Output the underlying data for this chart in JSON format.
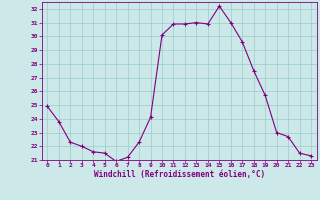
{
  "x": [
    0,
    1,
    2,
    3,
    4,
    5,
    6,
    7,
    8,
    9,
    10,
    11,
    12,
    13,
    14,
    15,
    16,
    17,
    18,
    19,
    20,
    21,
    22,
    23
  ],
  "y": [
    24.9,
    23.8,
    22.3,
    22.0,
    21.6,
    21.5,
    20.9,
    21.2,
    22.3,
    24.1,
    30.1,
    30.9,
    30.9,
    31.0,
    30.9,
    32.2,
    31.0,
    29.6,
    27.5,
    25.7,
    23.0,
    22.7,
    21.5,
    21.3
  ],
  "line_color": "#800080",
  "marker": "+",
  "marker_color": "#800080",
  "bg_color": "#cce8e8",
  "grid_color": "#99cccc",
  "xlabel": "Windchill (Refroidissement éolien,°C)",
  "xlabel_color": "#800080",
  "tick_color": "#800080",
  "ylim": [
    21,
    32.5
  ],
  "yticks": [
    21,
    22,
    23,
    24,
    25,
    26,
    27,
    28,
    29,
    30,
    31,
    32
  ],
  "xticks": [
    0,
    1,
    2,
    3,
    4,
    5,
    6,
    7,
    8,
    9,
    10,
    11,
    12,
    13,
    14,
    15,
    16,
    17,
    18,
    19,
    20,
    21,
    22,
    23
  ],
  "xtick_labels": [
    "0",
    "1",
    "2",
    "3",
    "4",
    "5",
    "6",
    "7",
    "8",
    "9",
    "10",
    "11",
    "12",
    "13",
    "14",
    "15",
    "16",
    "17",
    "18",
    "19",
    "20",
    "21",
    "22",
    "23"
  ]
}
